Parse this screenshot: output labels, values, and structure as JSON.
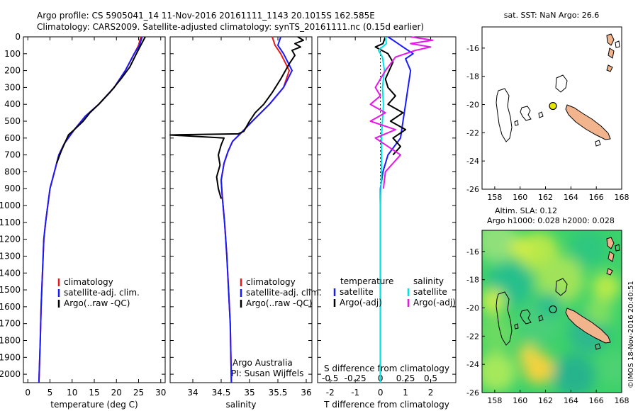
{
  "header": {
    "line1": "Argo profile: CS 5905041_14 11-Nov-2016 20161111_1143 20.1015S 162.585E",
    "line2": "Climatology: CARS2009. Satellite-adjusted climatology: synTS_20161111.nc (0.15d earlier)"
  },
  "colors": {
    "climatology": "#e41a1c",
    "satellite": "#1a1aff",
    "argo": "#000000",
    "s_satellite": "#00e5e5",
    "s_argo": "#e519e5",
    "land": "#f2b48c",
    "marker": "#e6e600"
  },
  "chart_data": [
    {
      "type": "line",
      "name": "temperature",
      "xlabel": "temperature (deg C)",
      "ylabel": "",
      "xlim": [
        -1,
        31
      ],
      "ylim": [
        2050,
        0
      ],
      "xticks": [
        0,
        5,
        10,
        15,
        20,
        25,
        30
      ],
      "yticks": [
        0,
        100,
        200,
        300,
        400,
        500,
        600,
        700,
        800,
        900,
        1000,
        1100,
        1200,
        1300,
        1400,
        1500,
        1600,
        1700,
        1800,
        1900,
        2000
      ],
      "legend": [
        "climatology",
        "satellite-adj. clim.",
        "Argo(..raw -QC)"
      ],
      "series": [
        {
          "name": "climatology",
          "color": "climatology",
          "points": [
            [
              25.5,
              0
            ],
            [
              25,
              50
            ],
            [
              24,
              100
            ],
            [
              22,
              200
            ],
            [
              19.5,
              300
            ],
            [
              16,
              400
            ],
            [
              13,
              470
            ],
            [
              10.5,
              550
            ],
            [
              8.3,
              630
            ],
            [
              7,
              700
            ],
            [
              6,
              800
            ],
            [
              5,
              900
            ],
            [
              4.5,
              1000
            ],
            [
              4,
              1100
            ],
            [
              3.6,
              1200
            ],
            [
              3.3,
              1400
            ],
            [
              3,
              1600
            ],
            [
              2.8,
              1800
            ],
            [
              2.5,
              2050
            ]
          ]
        },
        {
          "name": "satellite-adj. clim.",
          "color": "satellite",
          "points": [
            [
              25.8,
              0
            ],
            [
              25.2,
              50
            ],
            [
              24,
              100
            ],
            [
              22,
              200
            ],
            [
              19.5,
              300
            ],
            [
              16,
              400
            ],
            [
              13,
              470
            ],
            [
              10.5,
              550
            ],
            [
              8.3,
              630
            ],
            [
              7,
              700
            ],
            [
              6,
              800
            ],
            [
              5,
              900
            ],
            [
              4.5,
              1000
            ],
            [
              4,
              1100
            ],
            [
              3.6,
              1200
            ],
            [
              3.3,
              1400
            ],
            [
              3,
              1600
            ],
            [
              2.8,
              1800
            ],
            [
              2.5,
              2050
            ]
          ]
        },
        {
          "name": "Argo(..raw -QC)",
          "color": "argo",
          "points": [
            [
              26.5,
              0
            ],
            [
              25.5,
              50
            ],
            [
              24.5,
              100
            ],
            [
              23,
              180
            ],
            [
              21,
              250
            ],
            [
              18.5,
              330
            ],
            [
              16,
              400
            ],
            [
              14,
              450
            ],
            [
              12.5,
              500
            ],
            [
              10.5,
              550
            ],
            [
              9.2,
              580
            ],
            [
              8.5,
              620
            ],
            [
              7.5,
              680
            ],
            [
              6.5,
              750
            ]
          ]
        }
      ]
    },
    {
      "type": "line",
      "name": "salinity",
      "xlabel": "salinity",
      "ylabel": "",
      "xlim": [
        33.6,
        36.1
      ],
      "ylim": [
        2050,
        0
      ],
      "xticks": [
        34,
        34.5,
        35,
        35.5,
        36
      ],
      "legend": [
        "climatology",
        "satellite-adj. clim.",
        "Argo(..raw -QC)"
      ],
      "annotation": [
        "Argo Australia",
        "PI: Susan Wijffels"
      ],
      "series": [
        {
          "name": "climatology",
          "color": "climatology",
          "points": [
            [
              35.4,
              0
            ],
            [
              35.45,
              50
            ],
            [
              35.55,
              100
            ],
            [
              35.7,
              200
            ],
            [
              35.6,
              300
            ],
            [
              35.35,
              400
            ],
            [
              35.05,
              500
            ],
            [
              34.85,
              570
            ],
            [
              34.7,
              620
            ],
            [
              34.62,
              680
            ],
            [
              34.55,
              750
            ],
            [
              34.5,
              850
            ],
            [
              34.52,
              950
            ],
            [
              34.56,
              1100
            ],
            [
              34.6,
              1300
            ],
            [
              34.63,
              1500
            ],
            [
              34.66,
              1700
            ],
            [
              34.68,
              2050
            ]
          ]
        },
        {
          "name": "satellite-adj. clim.",
          "color": "satellite",
          "points": [
            [
              35.55,
              0
            ],
            [
              35.5,
              50
            ],
            [
              35.6,
              100
            ],
            [
              35.75,
              200
            ],
            [
              35.6,
              300
            ],
            [
              35.35,
              400
            ],
            [
              35.05,
              500
            ],
            [
              34.85,
              570
            ],
            [
              34.7,
              620
            ],
            [
              34.62,
              680
            ],
            [
              34.55,
              750
            ],
            [
              34.5,
              850
            ],
            [
              34.52,
              950
            ],
            [
              34.56,
              1100
            ],
            [
              34.6,
              1300
            ],
            [
              34.63,
              1500
            ],
            [
              34.66,
              1700
            ],
            [
              34.68,
              2050
            ]
          ]
        },
        {
          "name": "Argo(..raw -QC)",
          "color": "argo",
          "points": [
            [
              35.85,
              0
            ],
            [
              35.95,
              20
            ],
            [
              35.8,
              40
            ],
            [
              35.9,
              60
            ],
            [
              35.75,
              80
            ],
            [
              35.8,
              110
            ],
            [
              35.7,
              160
            ],
            [
              35.55,
              250
            ],
            [
              35.4,
              330
            ],
            [
              35.25,
              400
            ],
            [
              35.1,
              450
            ],
            [
              35.0,
              500
            ],
            [
              34.9,
              560
            ],
            [
              34.8,
              575
            ],
            [
              33.8,
              580
            ],
            [
              33.6,
              582
            ],
            [
              34.55,
              600
            ],
            [
              34.5,
              640
            ],
            [
              34.45,
              700
            ],
            [
              34.48,
              760
            ],
            [
              34.42,
              830
            ],
            [
              34.45,
              900
            ],
            [
              34.5,
              960
            ]
          ]
        }
      ]
    },
    {
      "type": "line",
      "name": "difference",
      "xlabel": "T difference from climatology",
      "xlabel2": "S difference from climatology",
      "xlim": [
        -2.5,
        3
      ],
      "x2lim": [
        -0.625,
        0.75
      ],
      "ylim": [
        2050,
        0
      ],
      "xticks": [
        -2,
        -1,
        0,
        1,
        2
      ],
      "xticks2": [
        -0.5,
        -0.25,
        0,
        0.25,
        0.5
      ],
      "legend_titles": [
        "temperature",
        "salinity"
      ],
      "legend": [
        "satellite",
        "Argo(-adj)",
        "satellite",
        "Argo(-adj)"
      ],
      "series": [
        {
          "name": "T satellite",
          "color": "satellite",
          "points": [
            [
              0.3,
              0
            ],
            [
              0.6,
              30
            ],
            [
              0.9,
              60
            ],
            [
              1.2,
              90
            ],
            [
              1.3,
              100
            ],
            [
              1.0,
              130
            ],
            [
              1.2,
              200
            ],
            [
              1.1,
              300
            ],
            [
              1.0,
              400
            ],
            [
              0.9,
              500
            ],
            [
              0.8,
              600
            ],
            [
              0.3,
              700
            ],
            [
              0.1,
              800
            ],
            [
              0,
              900
            ],
            [
              0,
              2050
            ]
          ]
        },
        {
          "name": "T Argo(-adj)",
          "color": "argo",
          "points": [
            [
              0.2,
              0
            ],
            [
              0.1,
              40
            ],
            [
              -0.2,
              60
            ],
            [
              0.3,
              100
            ],
            [
              0.5,
              150
            ],
            [
              0.2,
              250
            ],
            [
              0.3,
              300
            ],
            [
              0.6,
              350
            ],
            [
              0.3,
              400
            ],
            [
              0.9,
              450
            ],
            [
              0.4,
              500
            ],
            [
              1.0,
              550
            ],
            [
              0.5,
              600
            ],
            [
              0.8,
              650
            ],
            [
              0.5,
              700
            ]
          ]
        },
        {
          "name": "S satellite",
          "color": "s_satellite",
          "points": [
            [
              0.05,
              0
            ],
            [
              0.06,
              40
            ],
            [
              -0.02,
              80
            ],
            [
              0.02,
              120
            ],
            [
              0.04,
              200
            ],
            [
              0.02,
              300
            ],
            [
              0.03,
              400
            ],
            [
              0.02,
              500
            ],
            [
              0.01,
              600
            ],
            [
              0.01,
              800
            ],
            [
              0,
              1000
            ],
            [
              0,
              2050
            ]
          ]
        },
        {
          "name": "S Argo(-adj)",
          "color": "s_argo",
          "points": [
            [
              0.3,
              0
            ],
            [
              0.52,
              20
            ],
            [
              0.3,
              40
            ],
            [
              0.5,
              60
            ],
            [
              0.35,
              80
            ],
            [
              0.15,
              120
            ],
            [
              0.05,
              200
            ],
            [
              -0.05,
              300
            ],
            [
              0,
              350
            ],
            [
              -0.1,
              400
            ],
            [
              0.05,
              450
            ],
            [
              -0.1,
              500
            ],
            [
              0.15,
              550
            ],
            [
              -0.05,
              600
            ],
            [
              0.2,
              700
            ],
            [
              0.05,
              800
            ],
            [
              0.03,
              900
            ]
          ]
        }
      ]
    },
    {
      "type": "map",
      "name": "sst",
      "title": "sat. SST: NaN Argo: 26.6",
      "xlim": [
        157,
        168
      ],
      "ylim": [
        -26,
        -14.5
      ],
      "xticks": [
        158,
        160,
        162,
        164,
        166,
        168
      ],
      "yticks": [
        -16,
        -18,
        -20,
        -22,
        -24,
        -26
      ],
      "argo_position": [
        162.585,
        -20.1015
      ]
    },
    {
      "type": "map",
      "name": "sla",
      "title": "Altim. SLA: 0.12",
      "subtitle": "Argo h1000: 0.028 h2000: 0.028",
      "xlim": [
        157,
        168
      ],
      "ylim": [
        -26,
        -14.5
      ],
      "xticks": [
        158,
        160,
        162,
        164,
        166,
        168
      ],
      "yticks": [
        -16,
        -18,
        -20,
        -22,
        -24,
        -26
      ],
      "argo_position": [
        162.585,
        -20.1015
      ],
      "credit": "©IMOS 18-Nov-2016 20:40:51"
    }
  ]
}
